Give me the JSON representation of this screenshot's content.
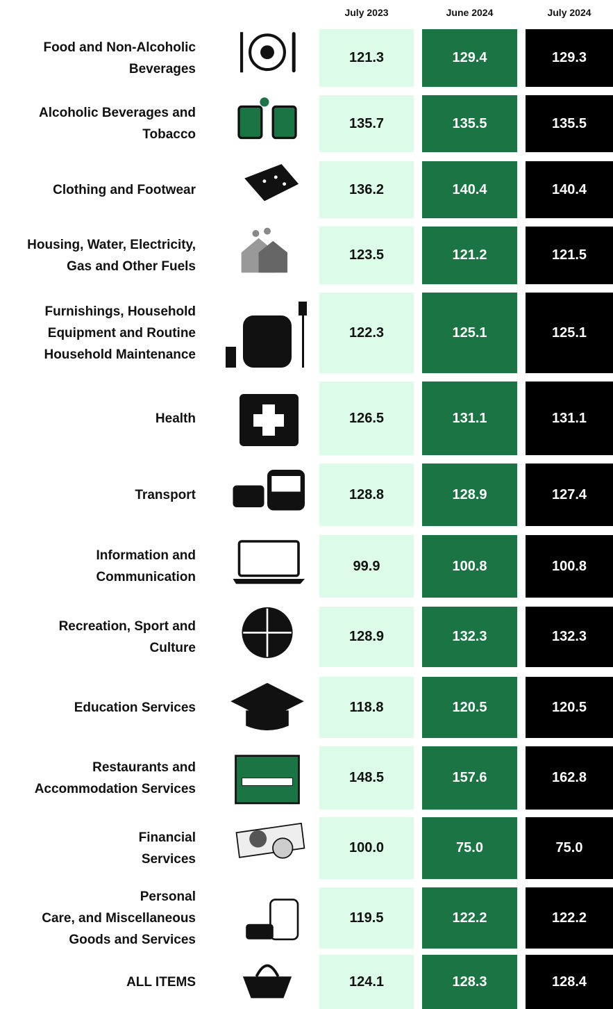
{
  "header": {
    "columns": [
      "July 2023",
      "June 2024",
      "July 2024"
    ]
  },
  "rows": [
    {
      "label": [
        "Food and Non-Alcoholic",
        "Beverages"
      ],
      "values": [
        "121.3",
        "129.4",
        "129.3"
      ]
    },
    {
      "label": [
        "Alcoholic Beverages and",
        "Tobacco"
      ],
      "values": [
        "135.7",
        "135.5",
        "135.5"
      ]
    },
    {
      "label": [
        "Clothing and Footwear"
      ],
      "values": [
        "136.2",
        "140.4",
        "140.4"
      ]
    },
    {
      "label": [
        "Housing, Water, Electricity,",
        "Gas and Other Fuels"
      ],
      "values": [
        "123.5",
        "121.2",
        "121.5"
      ]
    },
    {
      "label": [
        "Furnishings, Household",
        "Equipment and Routine",
        "Household Maintenance"
      ],
      "values": [
        "122.3",
        "125.1",
        "125.1"
      ]
    },
    {
      "label": [
        "Health"
      ],
      "values": [
        "126.5",
        "131.1",
        "131.1"
      ]
    },
    {
      "label": [
        "Transport"
      ],
      "values": [
        "128.8",
        "128.9",
        "127.4"
      ]
    },
    {
      "label": [
        "Information and",
        "Communication"
      ],
      "values": [
        "99.9",
        "100.8",
        "100.8"
      ]
    },
    {
      "label": [
        "Recreation, Sport and",
        "Culture"
      ],
      "values": [
        "128.9",
        "132.3",
        "132.3"
      ]
    },
    {
      "label": [
        "Education Services"
      ],
      "values": [
        "118.8",
        "120.5",
        "120.5"
      ]
    },
    {
      "label": [
        "Restaurants and",
        "Accommodation Services"
      ],
      "values": [
        "148.5",
        "157.6",
        "162.8"
      ]
    },
    {
      "label": [
        "Financial",
        "Services"
      ],
      "values": [
        "100.0",
        "75.0",
        "75.0"
      ]
    },
    {
      "label": [
        "Personal",
        "Care, and Miscellaneous",
        "Goods and Services"
      ],
      "values": [
        "119.5",
        "122.2",
        "122.2"
      ]
    },
    {
      "label": [
        "ALL ITEMS"
      ],
      "values": [
        "124.1",
        "128.3",
        "128.4"
      ]
    }
  ]
}
